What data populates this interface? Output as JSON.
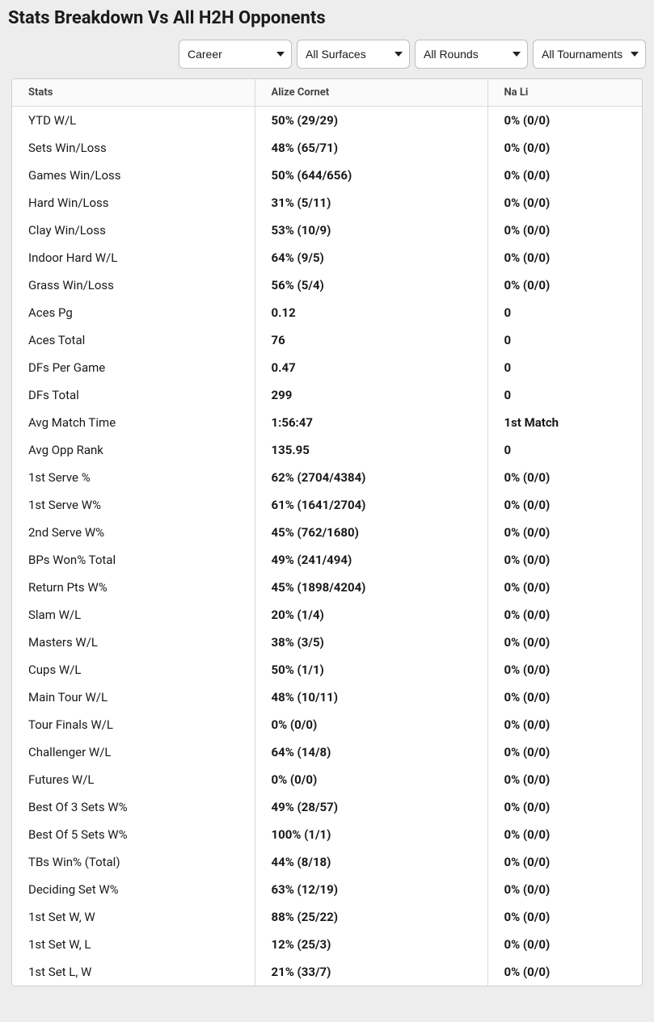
{
  "title": "Stats Breakdown Vs All H2H Opponents",
  "filters": {
    "period": {
      "selected": "Career"
    },
    "surface": {
      "selected": "All Surfaces"
    },
    "round": {
      "selected": "All Rounds"
    },
    "tournament": {
      "selected": "All Tournaments"
    }
  },
  "table": {
    "headers": {
      "stats": "Stats",
      "p1": "Alize Cornet",
      "p2": "Na Li"
    },
    "rows": [
      {
        "stat": "YTD W/L",
        "p1": "50% (29/29)",
        "p2": "0% (0/0)"
      },
      {
        "stat": "Sets Win/Loss",
        "p1": "48% (65/71)",
        "p2": "0% (0/0)"
      },
      {
        "stat": "Games Win/Loss",
        "p1": "50% (644/656)",
        "p2": "0% (0/0)"
      },
      {
        "stat": "Hard Win/Loss",
        "p1": "31% (5/11)",
        "p2": "0% (0/0)"
      },
      {
        "stat": "Clay Win/Loss",
        "p1": "53% (10/9)",
        "p2": "0% (0/0)"
      },
      {
        "stat": "Indoor Hard W/L",
        "p1": "64% (9/5)",
        "p2": "0% (0/0)"
      },
      {
        "stat": "Grass Win/Loss",
        "p1": "56% (5/4)",
        "p2": "0% (0/0)"
      },
      {
        "stat": "Aces Pg",
        "p1": "0.12",
        "p2": "0"
      },
      {
        "stat": "Aces Total",
        "p1": "76",
        "p2": "0"
      },
      {
        "stat": "DFs Per Game",
        "p1": "0.47",
        "p2": "0"
      },
      {
        "stat": "DFs Total",
        "p1": "299",
        "p2": "0"
      },
      {
        "stat": "Avg Match Time",
        "p1": "1:56:47",
        "p2": "1st Match"
      },
      {
        "stat": "Avg Opp Rank",
        "p1": "135.95",
        "p2": "0"
      },
      {
        "stat": "1st Serve %",
        "p1": "62% (2704/4384)",
        "p2": "0% (0/0)"
      },
      {
        "stat": "1st Serve W%",
        "p1": "61% (1641/2704)",
        "p2": "0% (0/0)"
      },
      {
        "stat": "2nd Serve W%",
        "p1": "45% (762/1680)",
        "p2": "0% (0/0)"
      },
      {
        "stat": "BPs Won% Total",
        "p1": "49% (241/494)",
        "p2": "0% (0/0)"
      },
      {
        "stat": "Return Pts W%",
        "p1": "45% (1898/4204)",
        "p2": "0% (0/0)"
      },
      {
        "stat": "Slam W/L",
        "p1": "20% (1/4)",
        "p2": "0% (0/0)"
      },
      {
        "stat": "Masters W/L",
        "p1": "38% (3/5)",
        "p2": "0% (0/0)"
      },
      {
        "stat": "Cups W/L",
        "p1": "50% (1/1)",
        "p2": "0% (0/0)"
      },
      {
        "stat": "Main Tour W/L",
        "p1": "48% (10/11)",
        "p2": "0% (0/0)"
      },
      {
        "stat": "Tour Finals W/L",
        "p1": "0% (0/0)",
        "p2": "0% (0/0)"
      },
      {
        "stat": "Challenger W/L",
        "p1": "64% (14/8)",
        "p2": "0% (0/0)"
      },
      {
        "stat": "Futures W/L",
        "p1": "0% (0/0)",
        "p2": "0% (0/0)"
      },
      {
        "stat": "Best Of 3 Sets W%",
        "p1": "49% (28/57)",
        "p2": "0% (0/0)"
      },
      {
        "stat": "Best Of 5 Sets W%",
        "p1": "100% (1/1)",
        "p2": "0% (0/0)"
      },
      {
        "stat": "TBs Win% (Total)",
        "p1": "44% (8/18)",
        "p2": "0% (0/0)"
      },
      {
        "stat": "Deciding Set W%",
        "p1": "63% (12/19)",
        "p2": "0% (0/0)"
      },
      {
        "stat": "1st Set W, W",
        "p1": "88% (25/22)",
        "p2": "0% (0/0)"
      },
      {
        "stat": "1st Set W, L",
        "p1": "12% (25/3)",
        "p2": "0% (0/0)"
      },
      {
        "stat": "1st Set L, W",
        "p1": "21% (33/7)",
        "p2": "0% (0/0)"
      }
    ]
  },
  "style": {
    "background": "#ededed",
    "table_border": "#cfcfcf",
    "cell_border": "#d9d9d9",
    "header_bg": "#fafafa",
    "font_family": "system-ui",
    "title_fontsize": 22,
    "header_fontsize": 13,
    "cell_fontsize": 15
  }
}
